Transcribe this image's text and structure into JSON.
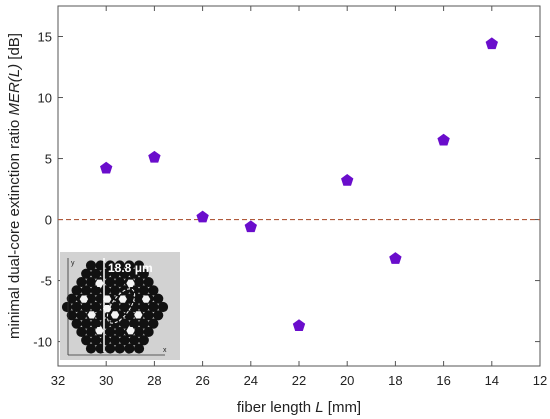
{
  "chart_data": {
    "type": "scatter",
    "xlabel": "fiber length",
    "xlabel_var": "L",
    "xlabel_unit": " [mm]",
    "ylabel_prefix": "minimal dual-core extinction ratio ",
    "ylabel_var": "MER(L)",
    "ylabel_unit": " [dB]",
    "xlim": [
      32,
      12
    ],
    "ylim": [
      -12,
      17.5
    ],
    "x_ticks": [
      32,
      30,
      28,
      26,
      24,
      22,
      20,
      18,
      16,
      14,
      12
    ],
    "y_ticks": [
      -10,
      -5,
      0,
      5,
      10,
      15
    ],
    "reference_line": {
      "y": 0,
      "color": "#b05a3c",
      "style": "dashed"
    },
    "marker": {
      "shape": "pentagon",
      "color": "#6a0dcc"
    },
    "points": [
      {
        "x": 30,
        "y": 4.2
      },
      {
        "x": 28,
        "y": 5.1
      },
      {
        "x": 26,
        "y": 0.2
      },
      {
        "x": 24,
        "y": -0.6
      },
      {
        "x": 22,
        "y": -8.7
      },
      {
        "x": 20,
        "y": 3.2
      },
      {
        "x": 18,
        "y": -3.2
      },
      {
        "x": 16,
        "y": 6.5
      },
      {
        "x": 14,
        "y": 14.4
      }
    ],
    "inset": {
      "scale_label": "18.8 μm",
      "axis_y": "y",
      "axis_x": "x"
    }
  }
}
